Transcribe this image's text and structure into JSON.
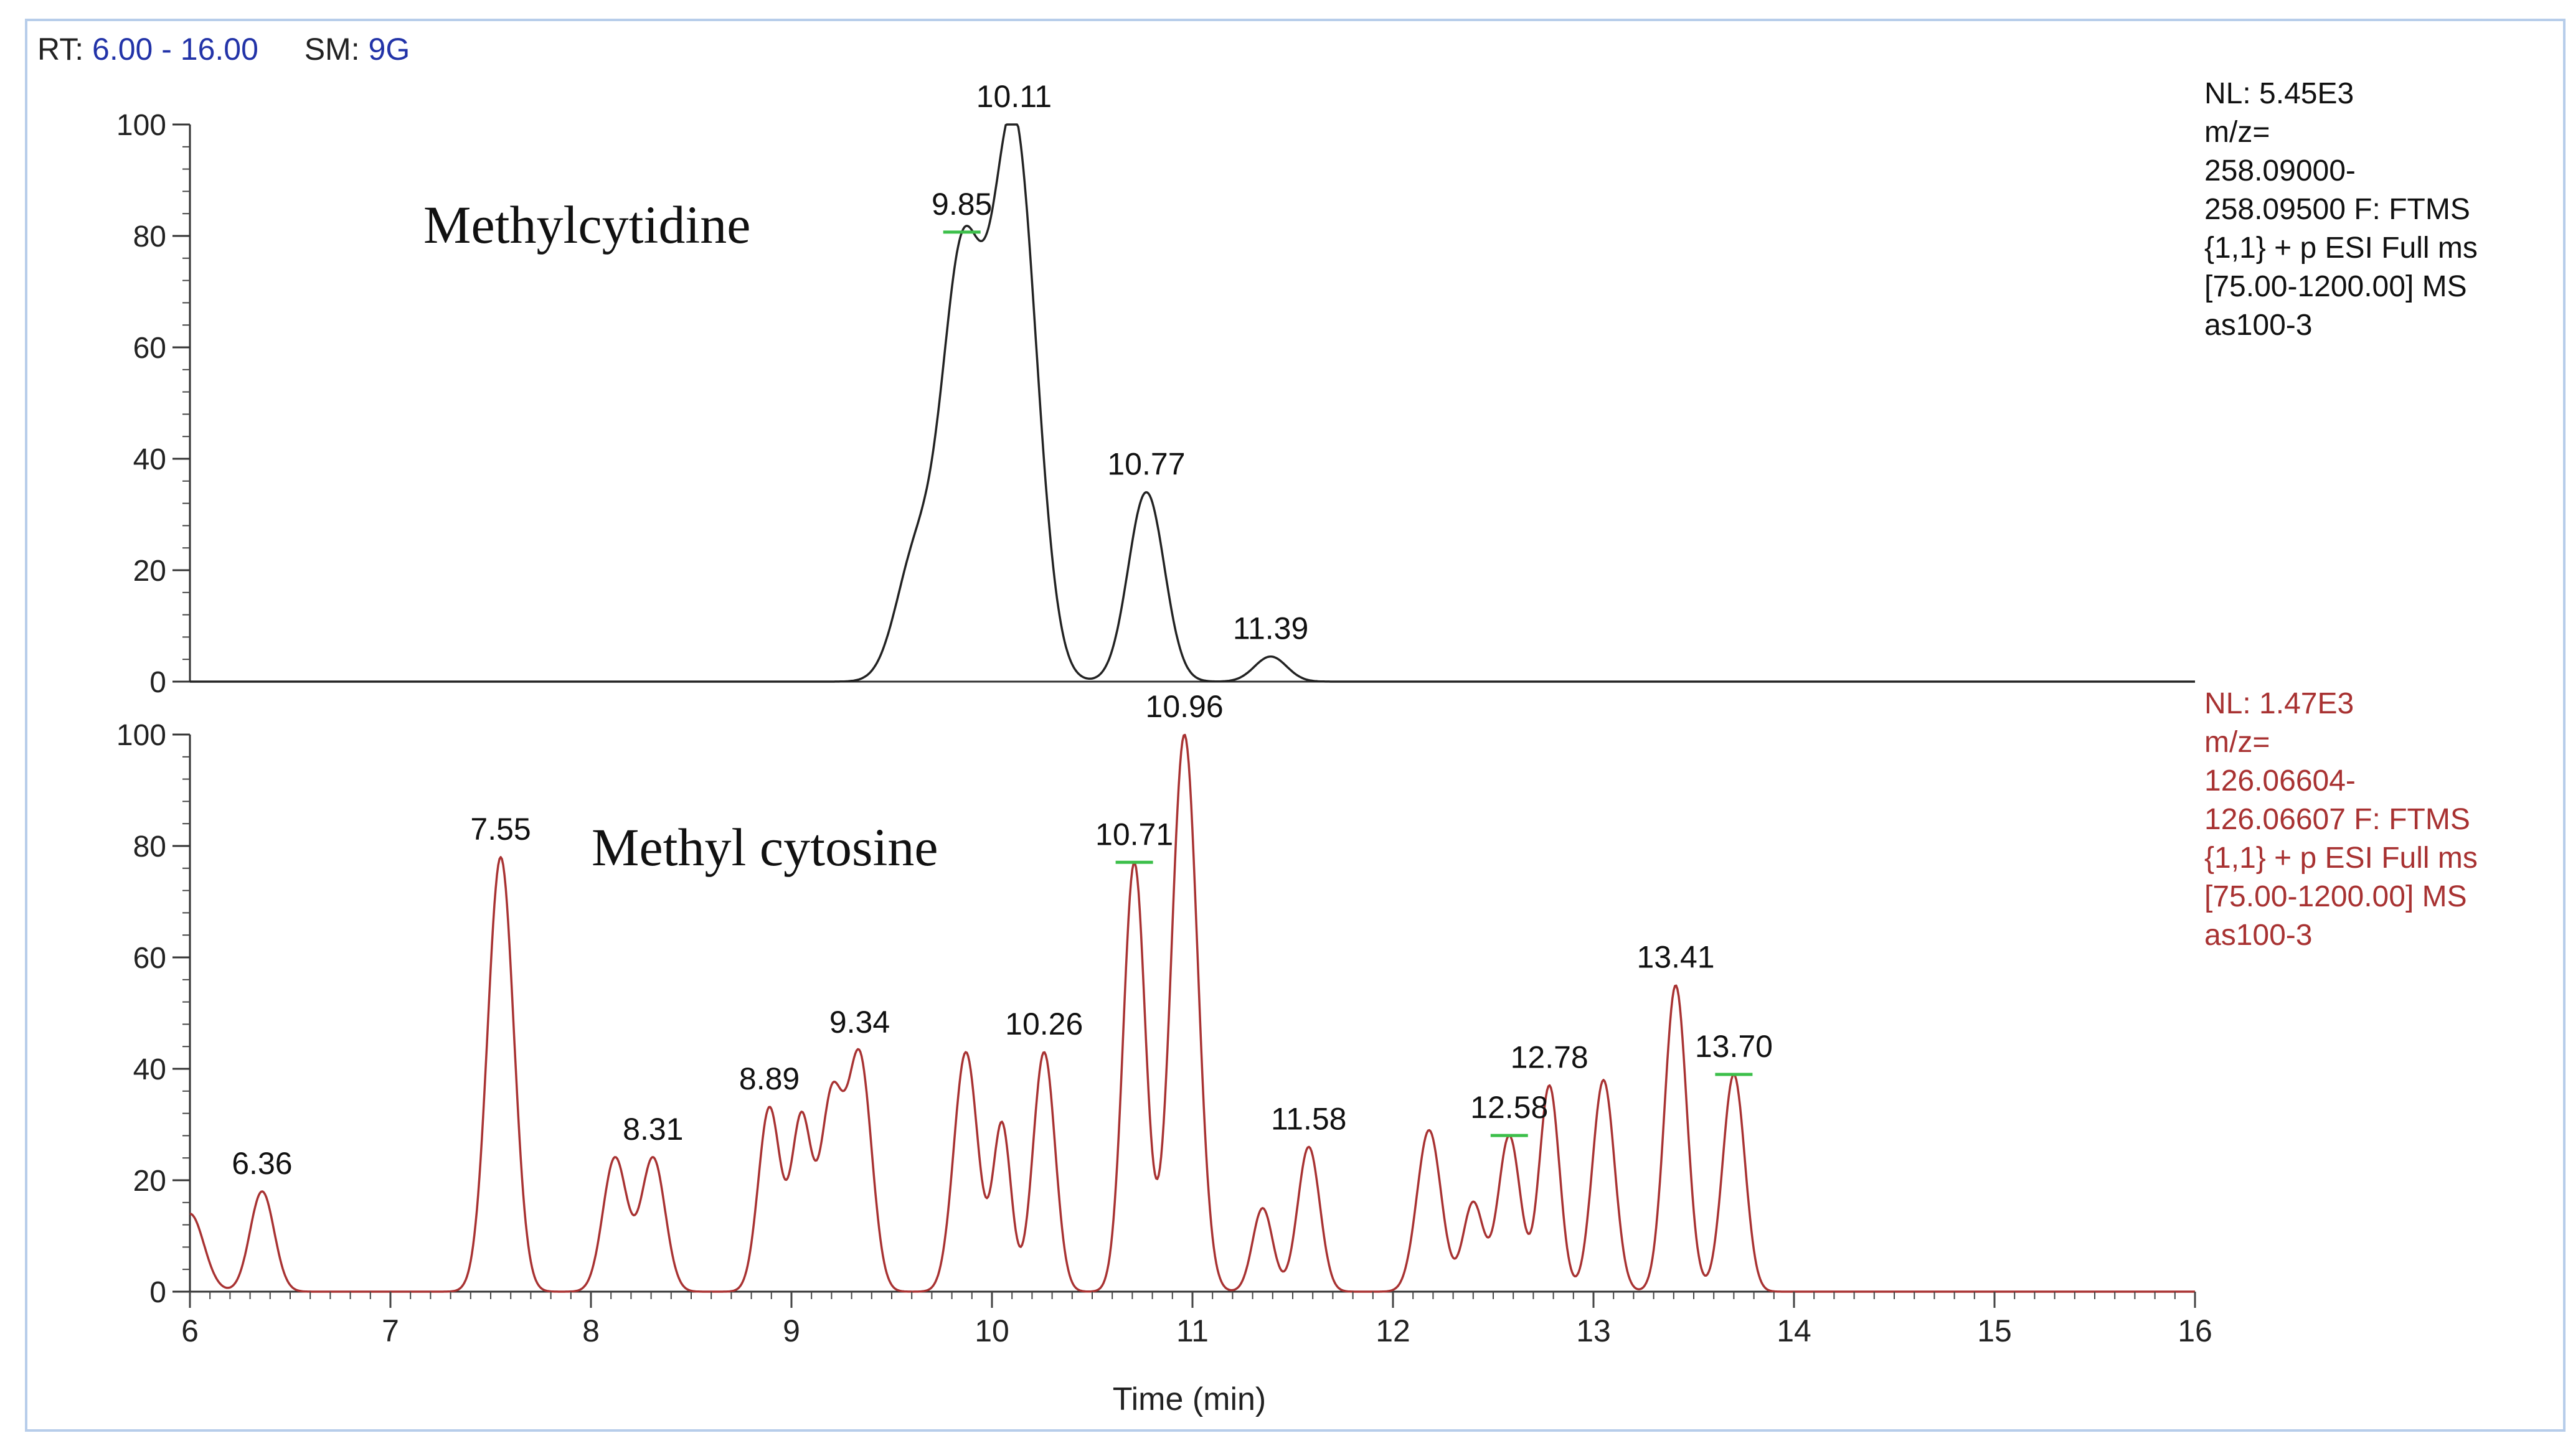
{
  "header": {
    "rt_label": "RT:",
    "rt_value": "6.00 - 16.00",
    "sm_label": "SM:",
    "sm_value": "9G"
  },
  "panels": [
    {
      "nl": "NL: 5.45E3",
      "details": [
        "m/z=",
        "258.09000-",
        "258.09500 F: FTMS",
        "{1,1}  + p ESI Full ms",
        "[75.00-1200.00]  MS",
        "as100-3"
      ],
      "color": "#222222"
    },
    {
      "nl": "NL: 1.47E3",
      "details": [
        "m/z=",
        "126.06604-",
        "126.06607 F: FTMS",
        "{1,1}  + p ESI Full ms",
        "[75.00-1200.00]  MS",
        "as100-3"
      ],
      "color": "#a83232"
    }
  ],
  "chart_data": [
    {
      "type": "line",
      "annotation": "Methylcytidine",
      "series_color": "#222222",
      "xlim": [
        6,
        16
      ],
      "ylim": [
        0,
        100
      ],
      "yticks": [
        0,
        20,
        40,
        60,
        80,
        100
      ],
      "peaks": [
        {
          "x": 9.62,
          "y": 22,
          "w": 0.1
        },
        {
          "x": 9.85,
          "y": 73,
          "w": 0.1
        },
        {
          "x": 10.11,
          "y": 100,
          "w": 0.11
        },
        {
          "x": 10.77,
          "y": 34,
          "w": 0.09
        },
        {
          "x": 11.39,
          "y": 4.5,
          "w": 0.08
        }
      ],
      "peak_labels": [
        {
          "x": 9.85,
          "y": 73,
          "text": "9.85",
          "marker": true
        },
        {
          "x": 10.11,
          "y": 100,
          "text": "10.11",
          "marker": false
        },
        {
          "x": 10.77,
          "y": 34,
          "text": "10.77",
          "marker": false
        },
        {
          "x": 11.39,
          "y": 4.5,
          "text": "11.39",
          "marker": false
        }
      ]
    },
    {
      "type": "line",
      "annotation": "Methyl cytosine",
      "series_color": "#a83232",
      "xlim": [
        6,
        16
      ],
      "ylim": [
        0,
        100
      ],
      "yticks": [
        0,
        20,
        40,
        60,
        80,
        100
      ],
      "xticks": [
        6,
        7,
        8,
        9,
        10,
        11,
        12,
        13,
        14,
        15,
        16
      ],
      "xlabel": "Time (min)",
      "peaks": [
        {
          "x": 6.0,
          "y": 14,
          "w": 0.07
        },
        {
          "x": 6.36,
          "y": 18,
          "w": 0.06
        },
        {
          "x": 7.55,
          "y": 78,
          "w": 0.065
        },
        {
          "x": 8.12,
          "y": 24,
          "w": 0.06
        },
        {
          "x": 8.31,
          "y": 24,
          "w": 0.06
        },
        {
          "x": 8.89,
          "y": 33,
          "w": 0.055
        },
        {
          "x": 9.05,
          "y": 31,
          "w": 0.05
        },
        {
          "x": 9.2,
          "y": 34,
          "w": 0.055
        },
        {
          "x": 9.34,
          "y": 42,
          "w": 0.06
        },
        {
          "x": 9.87,
          "y": 43,
          "w": 0.06
        },
        {
          "x": 10.05,
          "y": 30,
          "w": 0.045
        },
        {
          "x": 10.26,
          "y": 43,
          "w": 0.055
        },
        {
          "x": 10.71,
          "y": 77,
          "w": 0.055
        },
        {
          "x": 10.96,
          "y": 100,
          "w": 0.065
        },
        {
          "x": 11.35,
          "y": 15,
          "w": 0.05
        },
        {
          "x": 11.58,
          "y": 26,
          "w": 0.055
        },
        {
          "x": 12.18,
          "y": 29,
          "w": 0.06
        },
        {
          "x": 12.4,
          "y": 16,
          "w": 0.05
        },
        {
          "x": 12.58,
          "y": 28,
          "w": 0.055
        },
        {
          "x": 12.78,
          "y": 37,
          "w": 0.05
        },
        {
          "x": 13.05,
          "y": 38,
          "w": 0.055
        },
        {
          "x": 13.41,
          "y": 55,
          "w": 0.055
        },
        {
          "x": 13.7,
          "y": 39,
          "w": 0.055
        }
      ],
      "peak_labels": [
        {
          "x": 6.36,
          "y": 18,
          "text": "6.36",
          "marker": false
        },
        {
          "x": 7.55,
          "y": 78,
          "text": "7.55",
          "marker": false
        },
        {
          "x": 8.31,
          "y": 24,
          "text": "8.31",
          "marker": false
        },
        {
          "x": 8.89,
          "y": 33,
          "text": "8.89",
          "marker": false
        },
        {
          "x": 9.34,
          "y": 42,
          "text": "9.34",
          "marker": false
        },
        {
          "x": 10.26,
          "y": 43,
          "text": "10.26",
          "marker": false
        },
        {
          "x": 10.71,
          "y": 77,
          "text": "10.71",
          "marker": true
        },
        {
          "x": 10.96,
          "y": 100,
          "text": "10.96",
          "marker": false
        },
        {
          "x": 11.58,
          "y": 26,
          "text": "11.58",
          "marker": false
        },
        {
          "x": 12.58,
          "y": 28,
          "text": "12.58",
          "marker": true
        },
        {
          "x": 12.78,
          "y": 37,
          "text": "12.78",
          "marker": false
        },
        {
          "x": 13.41,
          "y": 55,
          "text": "13.41",
          "marker": false
        },
        {
          "x": 13.7,
          "y": 39,
          "text": "13.70",
          "marker": true
        }
      ]
    }
  ]
}
